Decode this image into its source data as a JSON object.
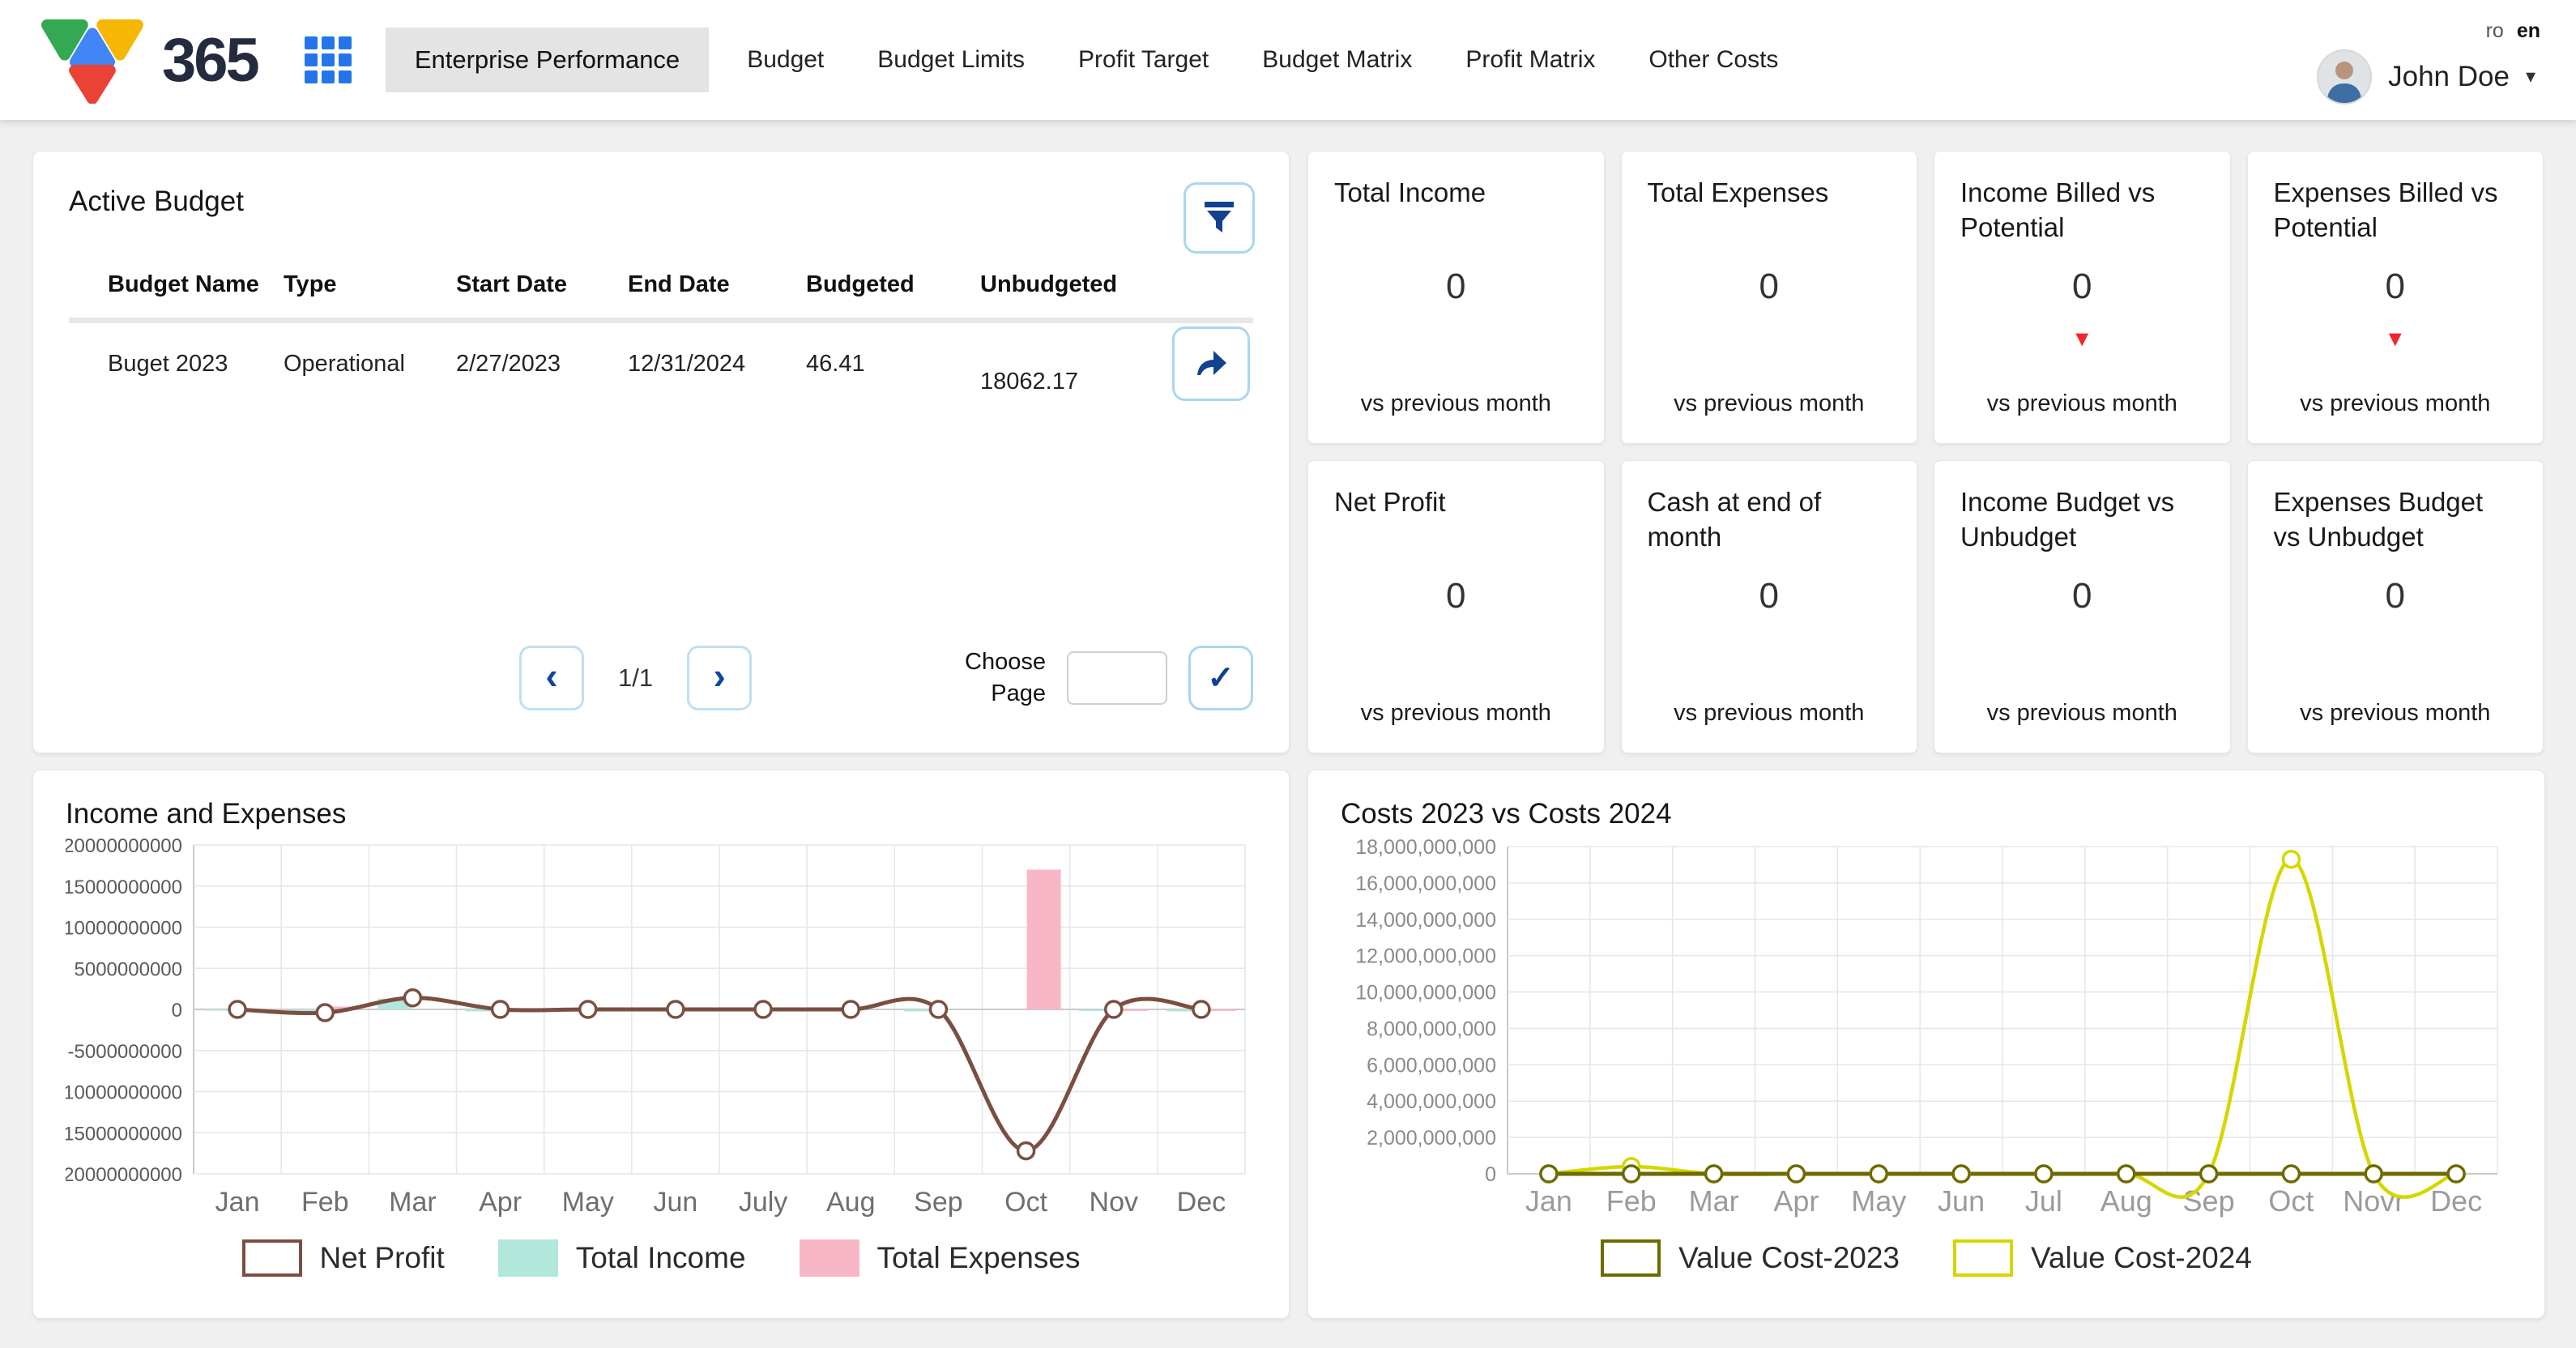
{
  "header": {
    "logo_text": "365",
    "active_app": "Enterprise Performance",
    "nav_items": [
      "Budget",
      "Budget Limits",
      "Profit Target",
      "Budget Matrix",
      "Profit Matrix",
      "Other Costs"
    ],
    "languages": {
      "ro": "ro",
      "en": "en"
    },
    "user_name": "John Doe"
  },
  "icons": {
    "prev": "‹",
    "next": "›",
    "confirm": "✓",
    "caret": "▾",
    "trend_down": "▼"
  },
  "active_budget": {
    "title": "Active Budget",
    "columns": [
      "Budget Name",
      "Type",
      "Start Date",
      "End Date",
      "Budgeted",
      "Unbudgeted"
    ],
    "rows": [
      {
        "budget_name": "Buget 2023",
        "type": "Operational",
        "start_date": "2/27/2023",
        "end_date": "12/31/2024",
        "budgeted": "46.41",
        "unbudgeted": "18062.17"
      }
    ],
    "pagination": {
      "page_indicator": "1/1",
      "choose_page_label": "Choose Page",
      "page_input_value": ""
    }
  },
  "kpi": {
    "cards": [
      {
        "title": "Total Income",
        "value": "0",
        "trend": null,
        "footnote": "vs previous month"
      },
      {
        "title": "Total Expenses",
        "value": "0",
        "trend": null,
        "footnote": "vs previous month"
      },
      {
        "title": "Income Billed vs Potential",
        "value": "0",
        "trend": "down",
        "footnote": "vs previous month"
      },
      {
        "title": "Expenses Billed vs Potential",
        "value": "0",
        "trend": "down",
        "footnote": "vs previous month"
      },
      {
        "title": "Net Profit",
        "value": "0",
        "trend": null,
        "footnote": "vs previous month"
      },
      {
        "title": "Cash at end of month",
        "value": "0",
        "trend": null,
        "footnote": "vs previous month"
      },
      {
        "title": "Income Budget vs Unbudget",
        "value": "0",
        "trend": null,
        "footnote": "vs previous month"
      },
      {
        "title": "Expenses Budget vs Unbudget",
        "value": "0",
        "trend": null,
        "footnote": "vs previous month"
      }
    ]
  },
  "chart_data": [
    {
      "type": "bar",
      "title": "Income and Expenses",
      "categories": [
        "Jan",
        "Feb",
        "Mar",
        "Apr",
        "May",
        "Jun",
        "July",
        "Aug",
        "Sep",
        "Oct",
        "Nov",
        "Dec"
      ],
      "y": {
        "min": -20000000000,
        "max": 20000000000,
        "step": 5000000000,
        "format": "plain"
      },
      "grid": true,
      "legend_position": "bottom",
      "series": [
        {
          "name": "Total Income",
          "type": "bar",
          "color": "#b2e7dc",
          "values": [
            -150000000,
            -250000000,
            1300000000,
            -250000000,
            0,
            -150000000,
            -200000000,
            0,
            -250000000,
            0,
            -200000000,
            -250000000
          ]
        },
        {
          "name": "Total Expenses",
          "type": "bar",
          "color": "#f8b7c7",
          "values": [
            0,
            350000000,
            0,
            0,
            0,
            0,
            -200000000,
            0,
            0,
            17000000000,
            -200000000,
            -200000000
          ]
        },
        {
          "name": "Net Profit",
          "type": "line",
          "color": "#7a4f41",
          "width": 5,
          "values": [
            0,
            -400000000,
            1400000000,
            0,
            0,
            0,
            0,
            0,
            0,
            -17200000000,
            0,
            0
          ]
        }
      ],
      "legend": [
        {
          "label": "Net Profit",
          "fill": "#ffffff",
          "border": "#7a4f41"
        },
        {
          "label": "Total Income",
          "fill": "#b2e7dc",
          "border": "#b2e7dc"
        },
        {
          "label": "Total Expenses",
          "fill": "#f8b7c7",
          "border": "#f8b7c7"
        }
      ]
    },
    {
      "type": "line",
      "title": "Costs 2023 vs Costs 2024",
      "categories": [
        "Jan",
        "Feb",
        "Mar",
        "Apr",
        "May",
        "Jun",
        "Jul",
        "Aug",
        "Sep",
        "Oct",
        "Novr",
        "Dec"
      ],
      "y": {
        "min": 0,
        "max": 18000000000,
        "step": 2000000000,
        "format": "comma"
      },
      "grid": true,
      "legend_position": "bottom",
      "series": [
        {
          "name": "Value Cost-2024",
          "type": "line",
          "color": "#d6d600",
          "width": 4.5,
          "values": [
            0,
            400000000,
            0,
            0,
            0,
            0,
            0,
            0,
            0,
            17300000000,
            0,
            0
          ]
        },
        {
          "name": "Value Cost-2023",
          "type": "line",
          "color": "#6e6a00",
          "width": 5,
          "values": [
            0,
            0,
            0,
            0,
            0,
            0,
            0,
            0,
            0,
            0,
            0,
            0
          ]
        }
      ],
      "legend": [
        {
          "label": "Value Cost-2023",
          "fill": "#ffffff",
          "border": "#6e6a00"
        },
        {
          "label": "Value Cost-2024",
          "fill": "#ffffff",
          "border": "#d6d600"
        }
      ]
    }
  ],
  "colors": {
    "accent_blue": "#12418f",
    "light_blue_border": "#a9d7ee",
    "trend_red": "#f2262c",
    "active_chip_bg": "#e4e4e4",
    "logo_green": "#34a853",
    "logo_yellow": "#f6b704",
    "logo_blue": "#4285f4",
    "logo_red": "#ea4335"
  }
}
